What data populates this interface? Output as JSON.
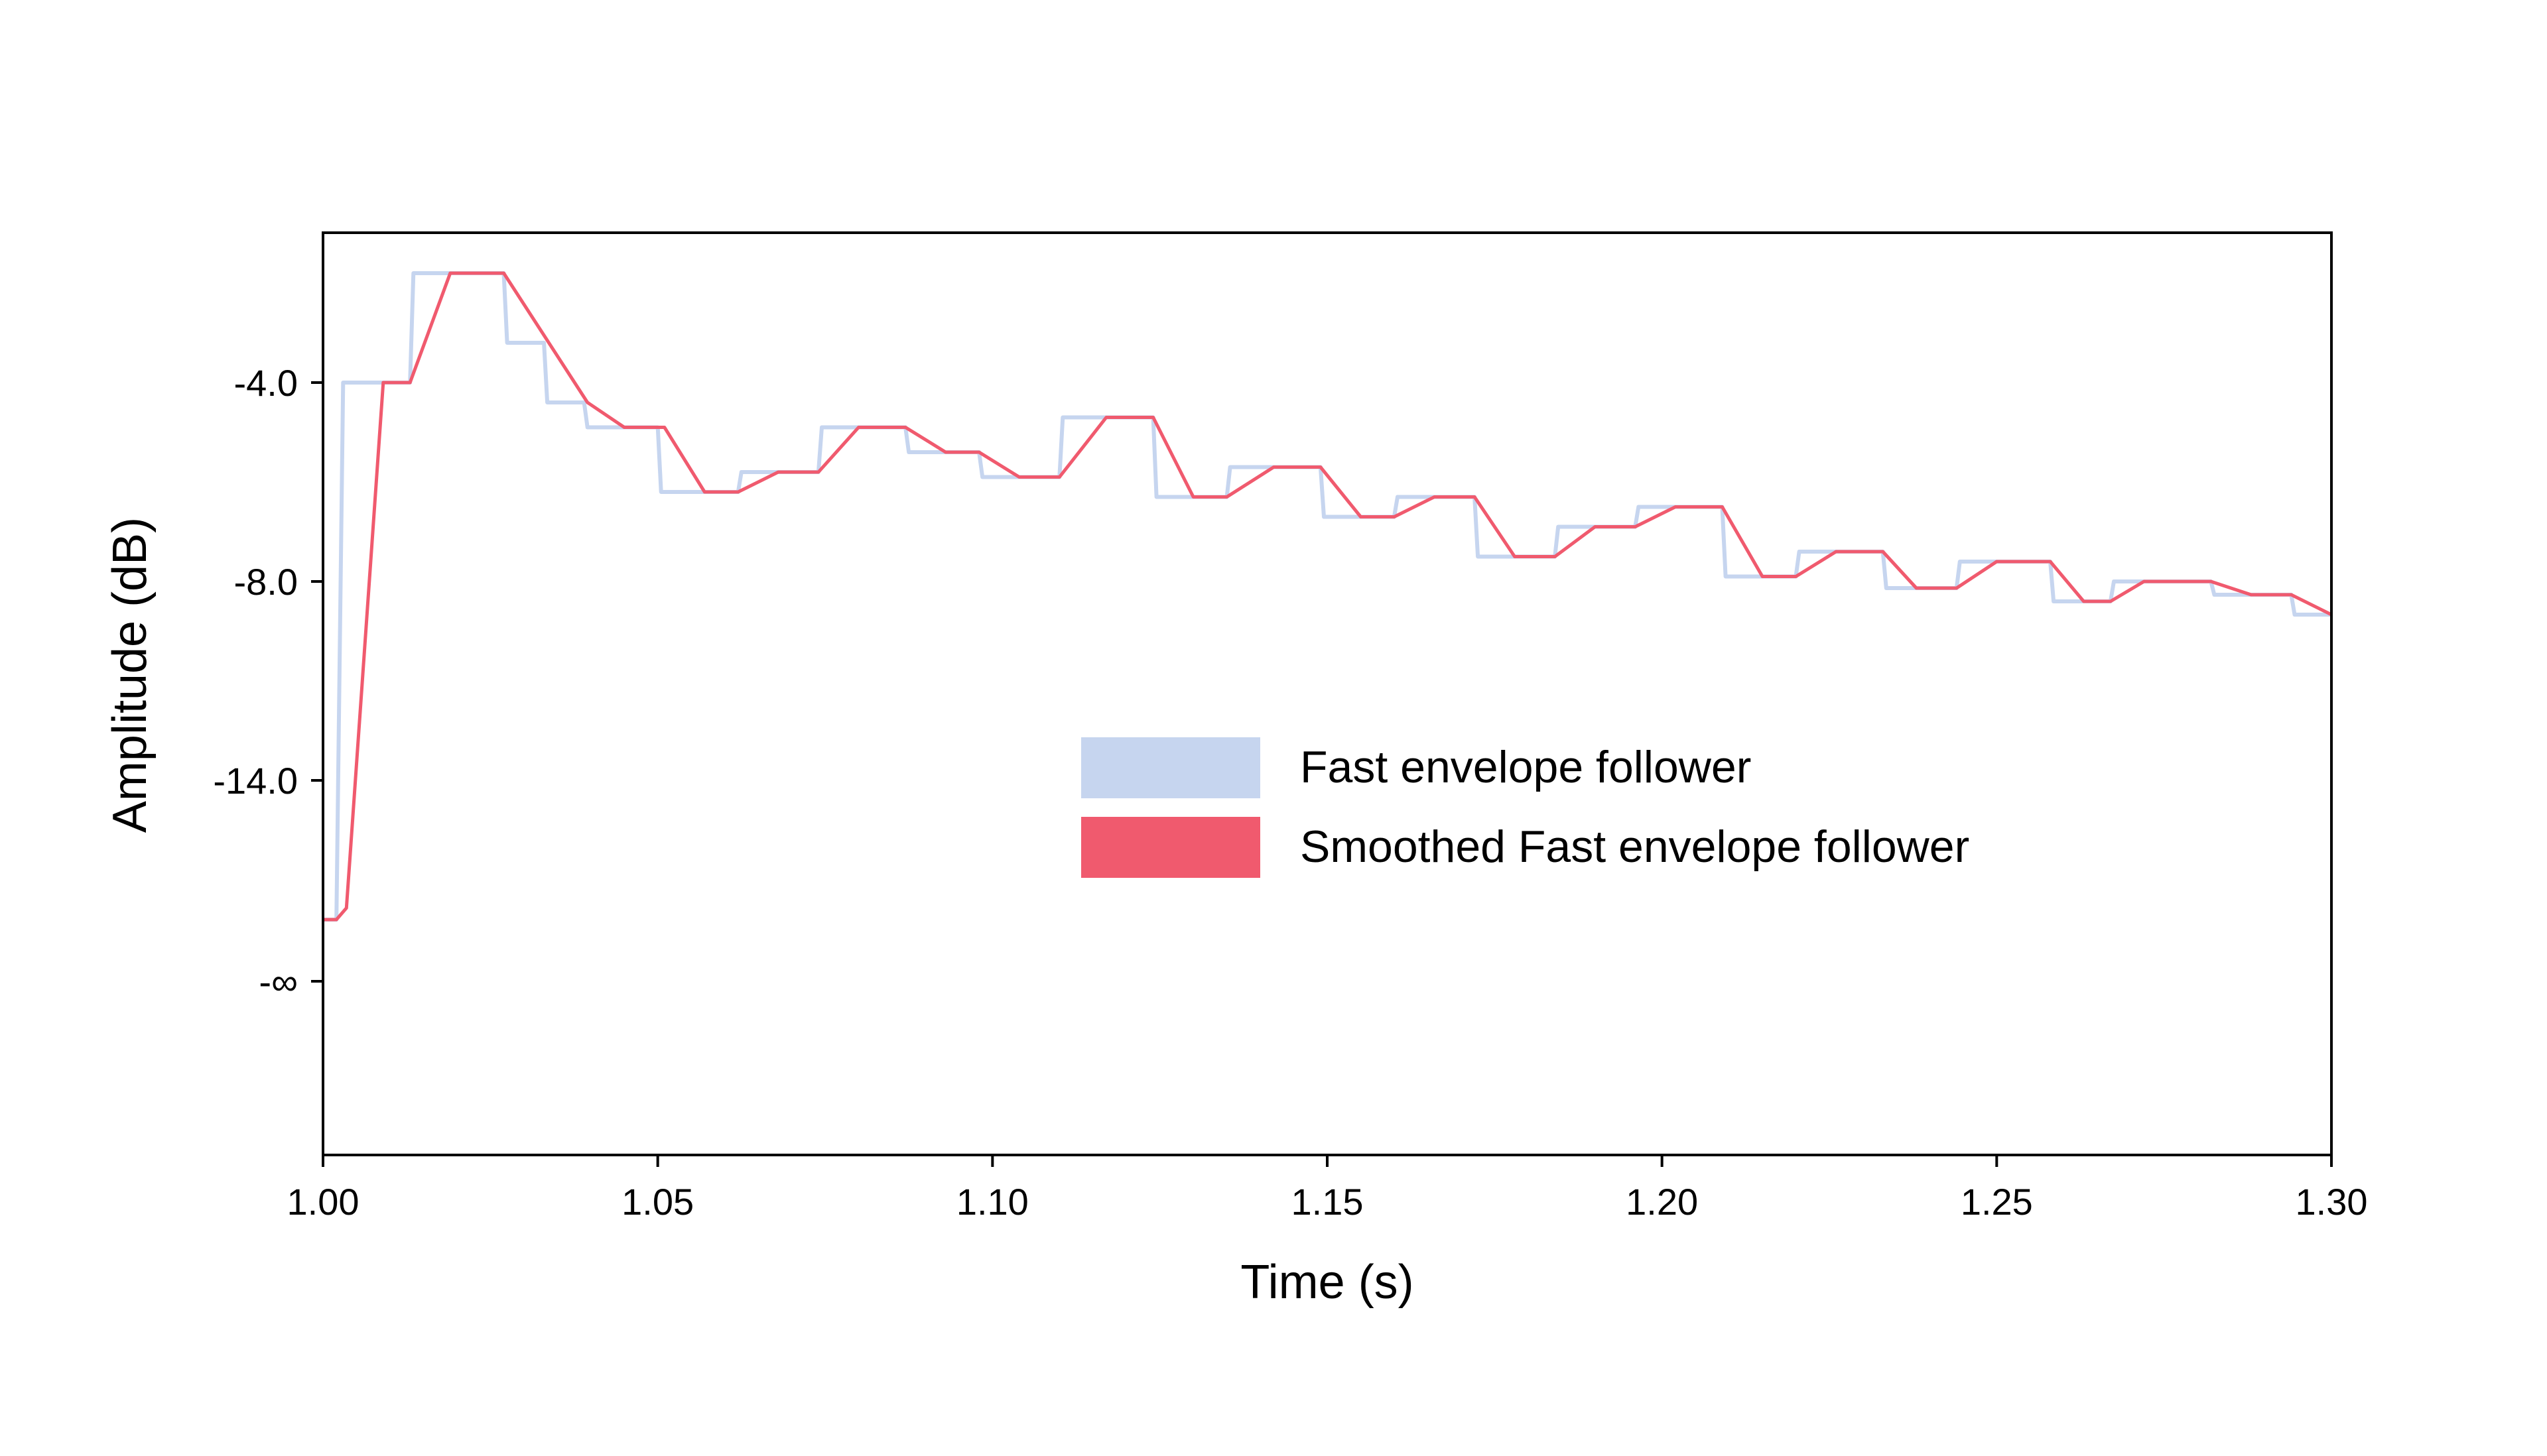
{
  "chart_data": {
    "type": "line",
    "xlabel": "Time (s)",
    "ylabel": "Amplitude (dB)",
    "xlim": [
      1.0,
      1.3
    ],
    "x_ticks": [
      {
        "value": 1.0,
        "label": "1.00"
      },
      {
        "value": 1.05,
        "label": "1.05"
      },
      {
        "value": 1.1,
        "label": "1.10"
      },
      {
        "value": 1.15,
        "label": "1.15"
      },
      {
        "value": 1.2,
        "label": "1.20"
      },
      {
        "value": 1.25,
        "label": "1.25"
      },
      {
        "value": 1.3,
        "label": "1.30"
      }
    ],
    "y_ticks": [
      {
        "value": -4.0,
        "label": "-4.0"
      },
      {
        "value": -8.0,
        "label": "-8.0"
      },
      {
        "value": -14.0,
        "label": "-14.0"
      },
      {
        "value": "-inf",
        "label": "-∞"
      }
    ],
    "grid": false,
    "legend_position": "center-right",
    "series": [
      {
        "name": "Fast envelope follower",
        "color": "#c6d5ef",
        "points": [
          [
            1.0,
            -26.0
          ],
          [
            1.002,
            -26.0
          ],
          [
            1.003,
            -4.0
          ],
          [
            1.013,
            -4.0
          ],
          [
            1.0135,
            -1.8
          ],
          [
            1.027,
            -1.8
          ],
          [
            1.0275,
            -3.2
          ],
          [
            1.033,
            -3.2
          ],
          [
            1.0335,
            -4.4
          ],
          [
            1.039,
            -4.4
          ],
          [
            1.0395,
            -4.9
          ],
          [
            1.05,
            -4.9
          ],
          [
            1.0505,
            -6.2
          ],
          [
            1.062,
            -6.2
          ],
          [
            1.0625,
            -5.8
          ],
          [
            1.074,
            -5.8
          ],
          [
            1.0745,
            -4.9
          ],
          [
            1.087,
            -4.9
          ],
          [
            1.0875,
            -5.4
          ],
          [
            1.098,
            -5.4
          ],
          [
            1.0985,
            -5.9
          ],
          [
            1.11,
            -5.9
          ],
          [
            1.1105,
            -4.7
          ],
          [
            1.124,
            -4.7
          ],
          [
            1.1245,
            -6.3
          ],
          [
            1.135,
            -6.3
          ],
          [
            1.1355,
            -5.7
          ],
          [
            1.149,
            -5.7
          ],
          [
            1.1495,
            -6.7
          ],
          [
            1.16,
            -6.7
          ],
          [
            1.1605,
            -6.3
          ],
          [
            1.172,
            -6.3
          ],
          [
            1.1725,
            -7.5
          ],
          [
            1.184,
            -7.5
          ],
          [
            1.1845,
            -6.9
          ],
          [
            1.196,
            -6.9
          ],
          [
            1.1965,
            -6.5
          ],
          [
            1.209,
            -6.5
          ],
          [
            1.2095,
            -7.9
          ],
          [
            1.22,
            -7.9
          ],
          [
            1.2205,
            -7.4
          ],
          [
            1.233,
            -7.4
          ],
          [
            1.2335,
            -8.2
          ],
          [
            1.244,
            -8.2
          ],
          [
            1.2445,
            -7.6
          ],
          [
            1.258,
            -7.6
          ],
          [
            1.2585,
            -8.6
          ],
          [
            1.267,
            -8.6
          ],
          [
            1.2675,
            -8.0
          ],
          [
            1.282,
            -8.0
          ],
          [
            1.2825,
            -8.4
          ],
          [
            1.294,
            -8.4
          ],
          [
            1.2945,
            -9.0
          ],
          [
            1.3,
            -9.0
          ]
        ]
      },
      {
        "name": "Smoothed Fast envelope follower",
        "color": "#f05a6e",
        "points": [
          [
            1.0,
            -26.0
          ],
          [
            1.002,
            -26.0
          ],
          [
            1.0035,
            -25.0
          ],
          [
            1.009,
            -4.0
          ],
          [
            1.013,
            -4.0
          ],
          [
            1.019,
            -1.8
          ],
          [
            1.027,
            -1.8
          ],
          [
            1.0395,
            -4.4
          ],
          [
            1.045,
            -4.9
          ],
          [
            1.051,
            -4.9
          ],
          [
            1.057,
            -6.2
          ],
          [
            1.062,
            -6.2
          ],
          [
            1.068,
            -5.8
          ],
          [
            1.074,
            -5.8
          ],
          [
            1.08,
            -4.9
          ],
          [
            1.087,
            -4.9
          ],
          [
            1.093,
            -5.4
          ],
          [
            1.098,
            -5.4
          ],
          [
            1.104,
            -5.9
          ],
          [
            1.11,
            -5.9
          ],
          [
            1.117,
            -4.7
          ],
          [
            1.124,
            -4.7
          ],
          [
            1.13,
            -6.3
          ],
          [
            1.135,
            -6.3
          ],
          [
            1.142,
            -5.7
          ],
          [
            1.149,
            -5.7
          ],
          [
            1.155,
            -6.7
          ],
          [
            1.16,
            -6.7
          ],
          [
            1.166,
            -6.3
          ],
          [
            1.172,
            -6.3
          ],
          [
            1.178,
            -7.5
          ],
          [
            1.184,
            -7.5
          ],
          [
            1.19,
            -6.9
          ],
          [
            1.196,
            -6.9
          ],
          [
            1.202,
            -6.5
          ],
          [
            1.209,
            -6.5
          ],
          [
            1.215,
            -7.9
          ],
          [
            1.22,
            -7.9
          ],
          [
            1.226,
            -7.4
          ],
          [
            1.233,
            -7.4
          ],
          [
            1.238,
            -8.2
          ],
          [
            1.244,
            -8.2
          ],
          [
            1.25,
            -7.6
          ],
          [
            1.258,
            -7.6
          ],
          [
            1.263,
            -8.6
          ],
          [
            1.267,
            -8.6
          ],
          [
            1.272,
            -8.0
          ],
          [
            1.282,
            -8.0
          ],
          [
            1.288,
            -8.4
          ],
          [
            1.294,
            -8.4
          ],
          [
            1.3,
            -9.0
          ]
        ]
      }
    ]
  }
}
